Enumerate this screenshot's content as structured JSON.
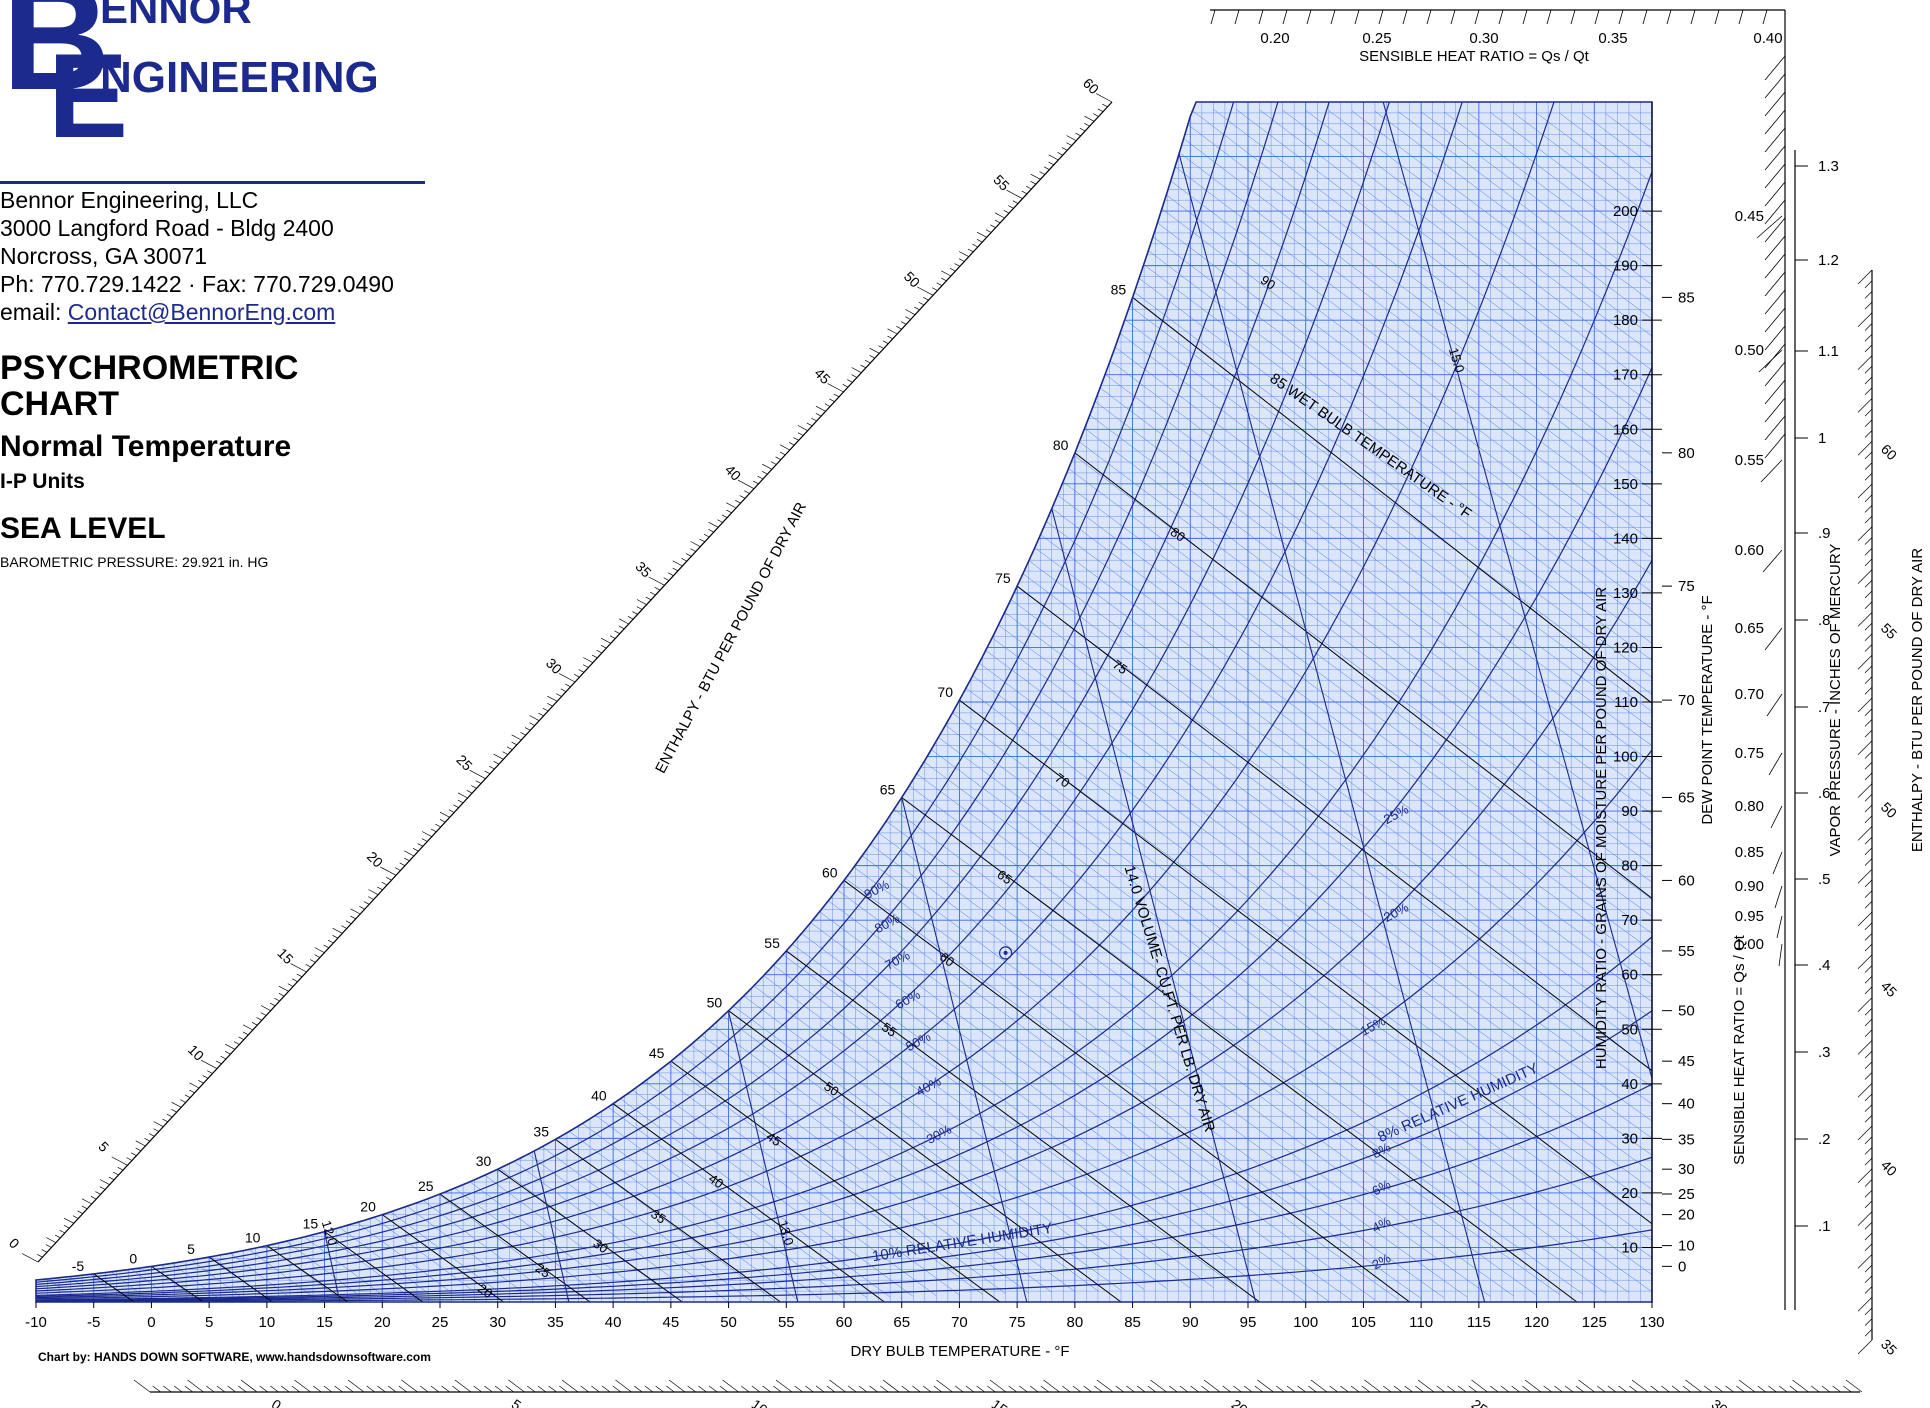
{
  "header": {
    "logo_line1": "ENNOR",
    "logo_line2": "NGINEERING",
    "logo_letter_b": "B",
    "logo_letter_e": "E",
    "company": "Bennor Engineering, LLC",
    "address1": "3000 Langford Road - Bldg 2400",
    "address2": "Norcross, GA 30071",
    "phone": "Ph: 770.729.1422 · Fax: 770.729.0490",
    "email_label": "email: ",
    "email": "Contact@BennorEng.com",
    "title_line1": "PSYCHROMETRIC",
    "title_line2": "CHART",
    "subtitle": "Normal Temperature",
    "units": "I-P Units",
    "level": "SEA LEVEL",
    "barometric": "BAROMETRIC PRESSURE: 29.921 in. HG",
    "credit": "Chart by: HANDS DOWN SOFTWARE, www.handsdownsoftware.com"
  },
  "colors": {
    "line": "#1b2a8c",
    "grid": "#3a6ae0",
    "fill": "#dbe6fb",
    "text": "#000000"
  },
  "chart_data": {
    "type": "line",
    "xlabel": "DRY BULB TEMPERATURE - °F",
    "ylabel_right": "HUMIDITY RATIO - GRAINS OF MOISTURE PER POUND OF DRY AIR",
    "dewpoint_label": "DEW POINT TEMPERATURE - °F",
    "shr_label_right": "SENSIBLE HEAT RATIO = Qs / Qt",
    "shr_label_top": "SENSIBLE HEAT RATIO = Qs / Qt",
    "vapor_label": "VAPOR PRESSURE - INCHES OF MERCURY",
    "enthalpy_label": "ENTHALPY - BTU PER POUND OF DRY AIR",
    "wetbulb_label": "85 WET BULB TEMPERATURE - °F",
    "volume_label": "14.0 VOLUME- CU.FT. PER LB. DRY AIR",
    "rh_label_10": "10% RELATIVE HUMIDITY",
    "rh_label_8": "8% RELATIVE HUMIDITY",
    "xlim": [
      -10,
      130
    ],
    "ylim": [
      0,
      220
    ],
    "x_ticks": [
      "-10",
      "-5",
      "0",
      "5",
      "10",
      "15",
      "20",
      "25",
      "30",
      "35",
      "40",
      "45",
      "50",
      "55",
      "60",
      "65",
      "70",
      "75",
      "80",
      "85",
      "90",
      "95",
      "100",
      "105",
      "110",
      "115",
      "120",
      "125",
      "130"
    ],
    "w_ticks": [
      "10",
      "20",
      "30",
      "40",
      "50",
      "60",
      "70",
      "80",
      "90",
      "100",
      "110",
      "120",
      "130",
      "140",
      "150",
      "160",
      "170",
      "180",
      "190",
      "200"
    ],
    "dewpoint_ticks": [
      "0",
      "10",
      "20",
      "25",
      "30",
      "35",
      "40",
      "45",
      "50",
      "55",
      "60",
      "65",
      "70",
      "75",
      "80",
      "85"
    ],
    "rh_curves": [
      2,
      4,
      6,
      8,
      10,
      15,
      20,
      25,
      30,
      40,
      50,
      60,
      70,
      80,
      90,
      100
    ],
    "rh_labels": [
      "2%",
      "4%",
      "6%",
      "8%",
      "15%",
      "20%",
      "25%",
      "30%",
      "40%",
      "50%",
      "60%",
      "70%",
      "80%",
      "90%"
    ],
    "wetbulb_values": [
      "-5",
      "0",
      "5",
      "10",
      "15",
      "20",
      "25",
      "30",
      "35",
      "40",
      "45",
      "50",
      "55",
      "60",
      "65",
      "70",
      "75",
      "80",
      "85"
    ],
    "wetbulb_inner_labels": [
      "0",
      "5",
      "10",
      "15",
      "20",
      "25",
      "30",
      "35",
      "40",
      "45",
      "50",
      "55",
      "60",
      "65",
      "70",
      "75",
      "80"
    ],
    "wetbulb_inner_90": "90",
    "volume_values": [
      "12.0",
      "12.5",
      "13.0",
      "13.5",
      "14.0",
      "14.5",
      "15.0"
    ],
    "volume_label_values": [
      "12.0",
      "13.0",
      "15.0"
    ],
    "enthalpy_left_ticks": [
      "0",
      "5",
      "10",
      "15",
      "20",
      "25",
      "30",
      "35",
      "40",
      "45",
      "50",
      "55",
      "60"
    ],
    "enthalpy_right_ticks": [
      "35",
      "40",
      "45",
      "50",
      "55",
      "60"
    ],
    "enthalpy_bottom_ticks": [
      "0",
      "5",
      "10",
      "15",
      "20",
      "25",
      "30"
    ],
    "shr_top_ticks": [
      "0.20",
      "0.25",
      "0.30",
      "0.35",
      "0.40"
    ],
    "shr_right_ticks": [
      "0.45",
      "0.50",
      "0.55",
      "0.60",
      "0.65",
      "0.70",
      "0.75",
      "0.80",
      "0.85",
      "0.90",
      "0.95",
      "1.00"
    ],
    "vapor_ticks": [
      ".1",
      ".2",
      ".3",
      ".4",
      ".5",
      ".6",
      ".7",
      ".8",
      ".9",
      "1",
      "1.1",
      "1.2",
      "1.3"
    ],
    "process_point": {
      "db": 74,
      "w": 64
    }
  }
}
